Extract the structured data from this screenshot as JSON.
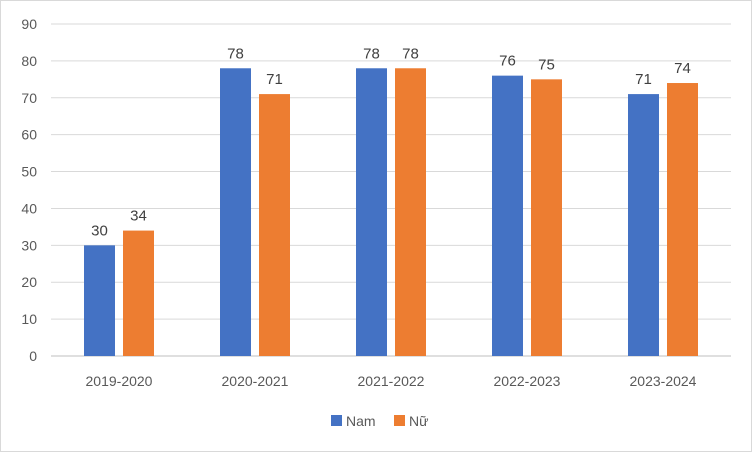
{
  "chart_data": {
    "type": "bar",
    "categories": [
      "2019-2020",
      "2020-2021",
      "2021-2022",
      "2022-2023",
      "2023-2024"
    ],
    "series": [
      {
        "name": "Nam",
        "values": [
          30,
          78,
          78,
          76,
          71
        ],
        "color": "#4472C4"
      },
      {
        "name": "Nữ",
        "values": [
          34,
          71,
          78,
          75,
          74
        ],
        "color": "#ED7D31"
      }
    ],
    "ylim": [
      0,
      90
    ],
    "yticks": [
      0,
      10,
      20,
      30,
      40,
      50,
      60,
      70,
      80,
      90
    ],
    "grid": true,
    "legend_position": "bottom",
    "data_labels": true
  }
}
